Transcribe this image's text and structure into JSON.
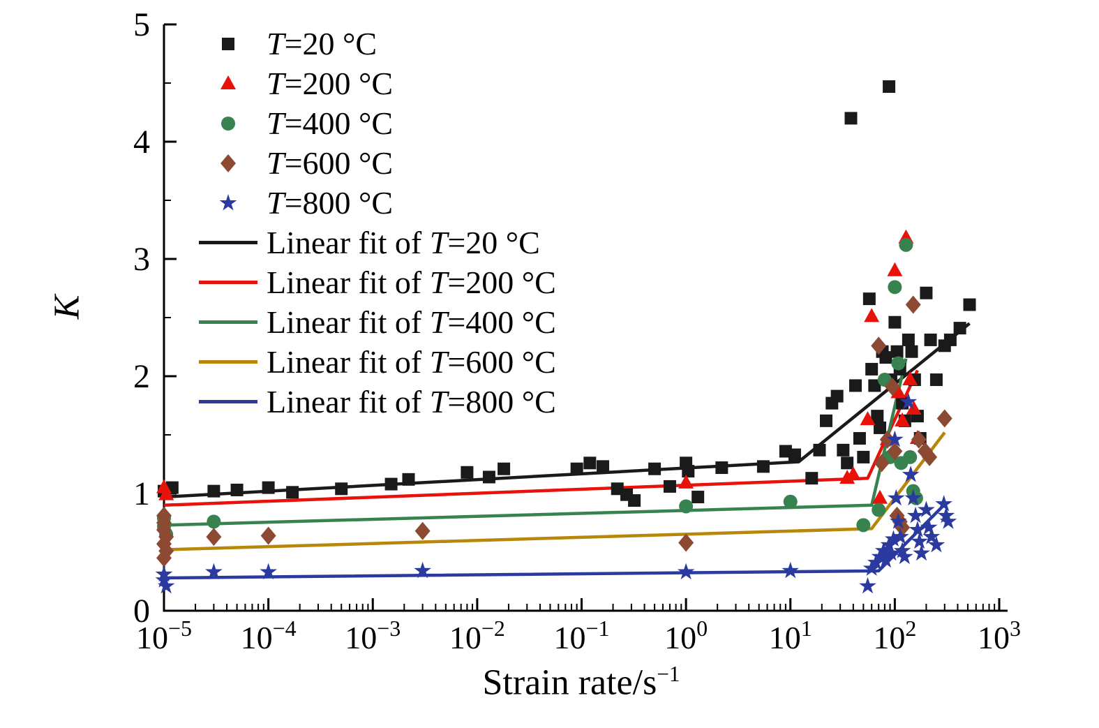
{
  "chart_data": {
    "type": "scatter",
    "title": "",
    "xlabel": "Strain rate/s",
    "xlabel_sup": "−1",
    "ylabel": "K",
    "x_scale": "log",
    "xlim_exponents": [
      -5,
      3
    ],
    "ylim": [
      0,
      5
    ],
    "y_ticks": [
      0,
      1,
      2,
      3,
      4,
      5
    ],
    "x_tick_exponents": [
      -5,
      -4,
      -3,
      -2,
      -1,
      0,
      1,
      2,
      3
    ],
    "grid": false,
    "legend_position": "top-left",
    "series": [
      {
        "name": "T=20 °C",
        "marker": "square",
        "color": "#1a1a1a",
        "points": [
          [
            1e-05,
            1.02
          ],
          [
            1.2e-05,
            1.05
          ],
          [
            3e-05,
            1.02
          ],
          [
            5e-05,
            1.03
          ],
          [
            0.0001,
            1.05
          ],
          [
            0.00017,
            1.01
          ],
          [
            0.0005,
            1.04
          ],
          [
            0.0015,
            1.08
          ],
          [
            0.0022,
            1.12
          ],
          [
            0.008,
            1.18
          ],
          [
            0.013,
            1.14
          ],
          [
            0.018,
            1.21
          ],
          [
            0.09,
            1.21
          ],
          [
            0.12,
            1.26
          ],
          [
            0.16,
            1.23
          ],
          [
            0.22,
            1.04
          ],
          [
            0.27,
            0.99
          ],
          [
            0.32,
            0.94
          ],
          [
            0.5,
            1.21
          ],
          [
            0.7,
            1.06
          ],
          [
            1.0,
            1.26
          ],
          [
            1.05,
            1.19
          ],
          [
            1.3,
            0.97
          ],
          [
            2.2,
            1.22
          ],
          [
            5.5,
            1.23
          ],
          [
            9,
            1.36
          ],
          [
            11,
            1.33
          ],
          [
            16,
            1.13
          ],
          [
            19,
            1.37
          ],
          [
            22,
            1.62
          ],
          [
            25,
            1.77
          ],
          [
            28,
            1.83
          ],
          [
            32,
            1.37
          ],
          [
            35,
            1.26
          ],
          [
            38,
            4.2
          ],
          [
            42,
            1.92
          ],
          [
            46,
            1.47
          ],
          [
            50,
            1.31
          ],
          [
            57,
            2.66
          ],
          [
            60,
            2.06
          ],
          [
            64,
            1.92
          ],
          [
            68,
            1.66
          ],
          [
            72,
            1.56
          ],
          [
            76,
            2.21
          ],
          [
            82,
            2.16
          ],
          [
            88,
            4.47
          ],
          [
            92,
            1.97
          ],
          [
            100,
            2.46
          ],
          [
            105,
            2.21
          ],
          [
            112,
            2.06
          ],
          [
            118,
            1.77
          ],
          [
            125,
            1.62
          ],
          [
            135,
            2.31
          ],
          [
            145,
            2.21
          ],
          [
            155,
            1.97
          ],
          [
            165,
            1.66
          ],
          [
            175,
            1.47
          ],
          [
            200,
            2.71
          ],
          [
            220,
            2.31
          ],
          [
            250,
            1.97
          ],
          [
            300,
            2.26
          ],
          [
            340,
            2.31
          ],
          [
            420,
            2.41
          ],
          [
            520,
            2.61
          ]
        ]
      },
      {
        "name": "T=200 °C",
        "marker": "triangle",
        "color": "#e8120b",
        "points": [
          [
            1e-05,
            1.05
          ],
          [
            1.05e-05,
            0.99
          ],
          [
            1.0,
            1.09
          ],
          [
            35,
            1.13
          ],
          [
            40,
            1.16
          ],
          [
            55,
            1.63
          ],
          [
            60,
            2.51
          ],
          [
            72,
            0.96
          ],
          [
            85,
            1.46
          ],
          [
            92,
            1.32
          ],
          [
            100,
            2.9
          ],
          [
            108,
            1.86
          ],
          [
            118,
            1.62
          ],
          [
            128,
            3.18
          ],
          [
            140,
            1.97
          ],
          [
            152,
            1.72
          ],
          [
            165,
            1.47
          ]
        ]
      },
      {
        "name": "T=400 °C",
        "marker": "circle",
        "color": "#37824f",
        "points": [
          [
            1e-05,
            0.79
          ],
          [
            1e-05,
            0.72
          ],
          [
            1.05e-05,
            0.65
          ],
          [
            3e-05,
            0.76
          ],
          [
            1.0,
            0.89
          ],
          [
            10,
            0.93
          ],
          [
            50,
            0.73
          ],
          [
            70,
            0.86
          ],
          [
            80,
            1.97
          ],
          [
            90,
            1.31
          ],
          [
            100,
            2.76
          ],
          [
            108,
            2.11
          ],
          [
            115,
            1.26
          ],
          [
            128,
            3.12
          ],
          [
            140,
            1.31
          ],
          [
            150,
            1.02
          ],
          [
            160,
            0.96
          ]
        ]
      },
      {
        "name": "T=600 °C",
        "marker": "diamond",
        "color": "#8c4a32",
        "points": [
          [
            1e-05,
            0.81
          ],
          [
            1e-05,
            0.75
          ],
          [
            1e-05,
            0.69
          ],
          [
            1.05e-05,
            0.63
          ],
          [
            1e-05,
            0.57
          ],
          [
            1.05e-05,
            0.51
          ],
          [
            1e-05,
            0.45
          ],
          [
            3e-05,
            0.63
          ],
          [
            0.0001,
            0.64
          ],
          [
            0.003,
            0.68
          ],
          [
            1.0,
            0.58
          ],
          [
            70,
            2.26
          ],
          [
            75,
            1.26
          ],
          [
            85,
            1.46
          ],
          [
            95,
            1.91
          ],
          [
            100,
            1.36
          ],
          [
            105,
            0.81
          ],
          [
            112,
            0.76
          ],
          [
            118,
            0.71
          ],
          [
            150,
            2.61
          ],
          [
            170,
            1.46
          ],
          [
            195,
            1.36
          ],
          [
            215,
            1.31
          ],
          [
            300,
            1.64
          ]
        ]
      },
      {
        "name": "T=800 °C",
        "marker": "star",
        "color": "#2b3a9f",
        "points": [
          [
            1e-05,
            0.31
          ],
          [
            1e-05,
            0.26
          ],
          [
            1.05e-05,
            0.21
          ],
          [
            3e-05,
            0.33
          ],
          [
            0.0001,
            0.33
          ],
          [
            0.003,
            0.34
          ],
          [
            1.0,
            0.33
          ],
          [
            10,
            0.34
          ],
          [
            55,
            0.21
          ],
          [
            60,
            0.36
          ],
          [
            66,
            0.41
          ],
          [
            72,
            0.46
          ],
          [
            78,
            0.51
          ],
          [
            82,
            0.43
          ],
          [
            88,
            0.56
          ],
          [
            92,
            0.49
          ],
          [
            97,
            0.61
          ],
          [
            100,
            1.46
          ],
          [
            103,
            0.96
          ],
          [
            108,
            0.76
          ],
          [
            113,
            0.63
          ],
          [
            118,
            0.51
          ],
          [
            124,
            0.46
          ],
          [
            135,
            1.78
          ],
          [
            142,
            1.16
          ],
          [
            150,
            0.96
          ],
          [
            158,
            0.81
          ],
          [
            165,
            0.69
          ],
          [
            172,
            0.59
          ],
          [
            180,
            0.49
          ],
          [
            200,
            0.86
          ],
          [
            212,
            0.71
          ],
          [
            224,
            0.63
          ],
          [
            250,
            0.56
          ],
          [
            295,
            0.91
          ],
          [
            310,
            0.81
          ],
          [
            325,
            0.76
          ]
        ]
      }
    ],
    "fits": [
      {
        "name": "Linear fit of T=20 °C",
        "color": "#1a1a1a",
        "points": [
          [
            1e-05,
            0.97
          ],
          [
            12,
            1.27
          ],
          [
            520,
            2.45
          ]
        ]
      },
      {
        "name": "Linear fit of T=200 °C",
        "color": "#e8120b",
        "points": [
          [
            1e-05,
            0.9
          ],
          [
            55,
            1.13
          ],
          [
            165,
            2.05
          ]
        ]
      },
      {
        "name": "Linear fit of T=400 °C",
        "color": "#37824f",
        "points": [
          [
            1e-05,
            0.73
          ],
          [
            60,
            0.9
          ],
          [
            128,
            2.15
          ]
        ]
      },
      {
        "name": "Linear fit of T=600 °C",
        "color": "#b8860b",
        "points": [
          [
            1e-05,
            0.52
          ],
          [
            60,
            0.7
          ],
          [
            300,
            1.52
          ]
        ]
      },
      {
        "name": "Linear fit of T=800 °C",
        "color": "#2b3a9f",
        "points": [
          [
            1e-05,
            0.28
          ],
          [
            70,
            0.34
          ],
          [
            310,
            0.92
          ]
        ]
      }
    ]
  }
}
